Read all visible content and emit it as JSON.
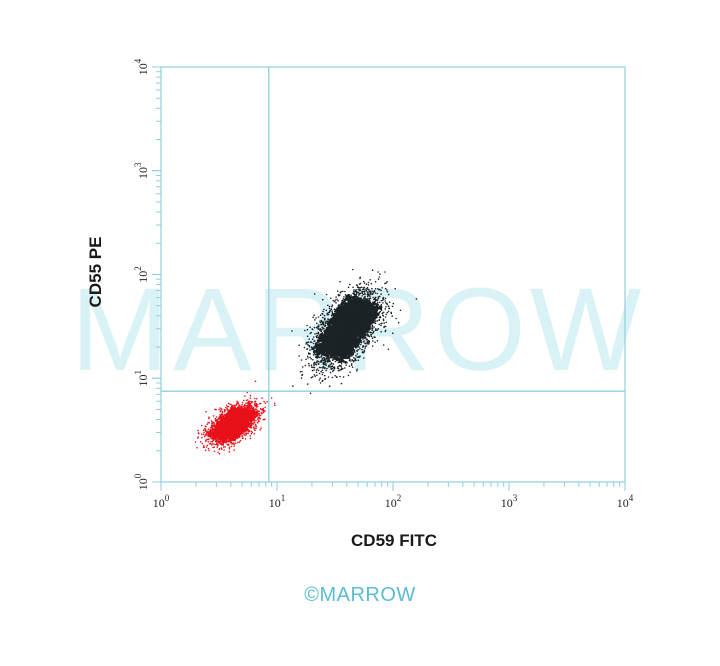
{
  "chart_data": {
    "type": "scatter",
    "xlabel": "CD59 FITC",
    "ylabel": "CD55 PE",
    "xscale": "log",
    "yscale": "log",
    "xlim": [
      1,
      10000
    ],
    "ylim": [
      1,
      10000
    ],
    "x_ticks": [
      {
        "base": "10",
        "exp": "0"
      },
      {
        "base": "10",
        "exp": "1"
      },
      {
        "base": "10",
        "exp": "2"
      },
      {
        "base": "10",
        "exp": "3"
      },
      {
        "base": "10",
        "exp": "4"
      }
    ],
    "y_ticks": [
      {
        "base": "10",
        "exp": "0"
      },
      {
        "base": "10",
        "exp": "1"
      },
      {
        "base": "10",
        "exp": "2"
      },
      {
        "base": "10",
        "exp": "3"
      },
      {
        "base": "10",
        "exp": "4"
      }
    ],
    "quadrant_gates": {
      "x": 8.5,
      "y": 7.5
    },
    "grid": false,
    "series": [
      {
        "cluster": "double-negative population",
        "color": "#e8101a",
        "center": [
          4.2,
          3.6
        ],
        "spread_decades": [
          0.1,
          0.09
        ],
        "points_est": 2600
      },
      {
        "cluster": "double-positive population",
        "color": "#1c2326",
        "center": [
          40,
          30
        ],
        "spread_decades": [
          0.14,
          0.18
        ],
        "points_est": 3400
      }
    ],
    "colors": {
      "axis": "#8fcfe0",
      "gate": "#8fcfe0",
      "brand": "#5bbcd4",
      "watermark": "#d9f2f6"
    }
  },
  "watermark": "MARROW",
  "footer": {
    "copyright_symbol": "©",
    "brand": "MARROW"
  }
}
